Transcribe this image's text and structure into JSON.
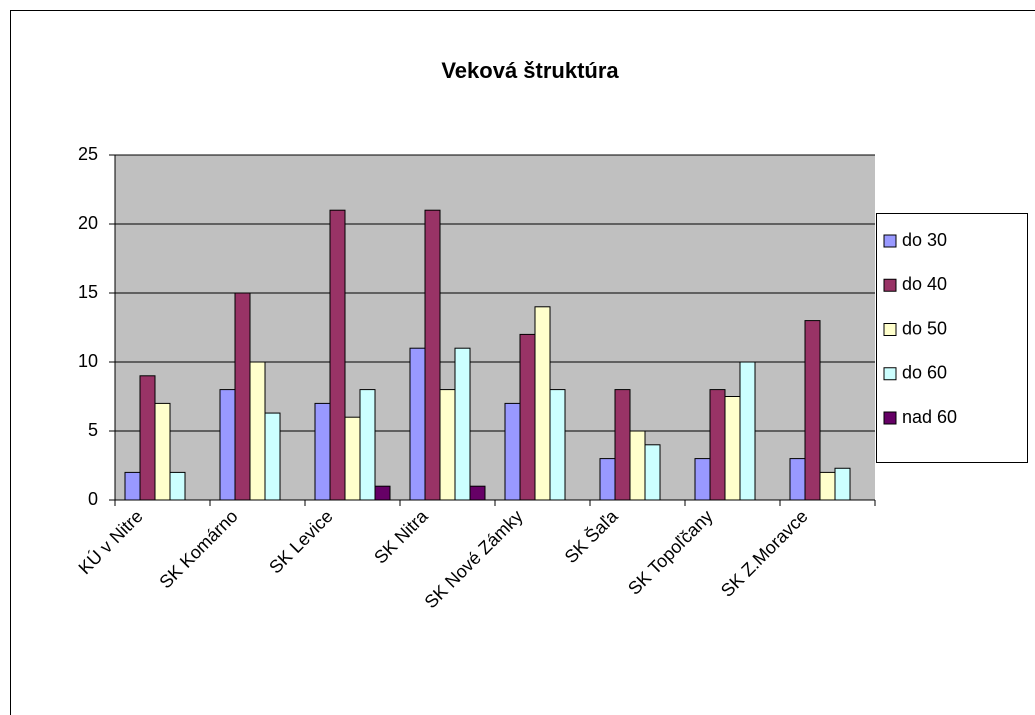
{
  "chart_data": {
    "type": "bar",
    "title": "Veková štruktúra",
    "categories": [
      "KÚ v Nitre",
      "SK Komárno",
      "SK Levice",
      "SK Nitra",
      "SK Nové Zámky",
      "SK Šaľa",
      "SK Topoľčany",
      "SK Z.Moravce"
    ],
    "series": [
      {
        "name": "do 30",
        "color": "#9999ff",
        "values": [
          2,
          8,
          7,
          11,
          7,
          3,
          3,
          3
        ]
      },
      {
        "name": "do 40",
        "color": "#993366",
        "values": [
          9,
          15,
          21,
          21,
          12,
          8,
          8,
          13
        ]
      },
      {
        "name": "do 50",
        "color": "#ffffcc",
        "values": [
          7,
          10,
          6,
          8,
          14,
          5,
          7.5,
          2
        ]
      },
      {
        "name": "do 60",
        "color": "#ccffff",
        "values": [
          2,
          6.3,
          8,
          11,
          8,
          4,
          10,
          2.3
        ]
      },
      {
        "name": "nad 60",
        "color": "#660066",
        "values": [
          0,
          0,
          1,
          1,
          0,
          0,
          0,
          0
        ]
      }
    ],
    "ylim": [
      0,
      25
    ],
    "yticks": [
      0,
      5,
      10,
      15,
      20,
      25
    ],
    "grid": true,
    "legend": "right"
  }
}
